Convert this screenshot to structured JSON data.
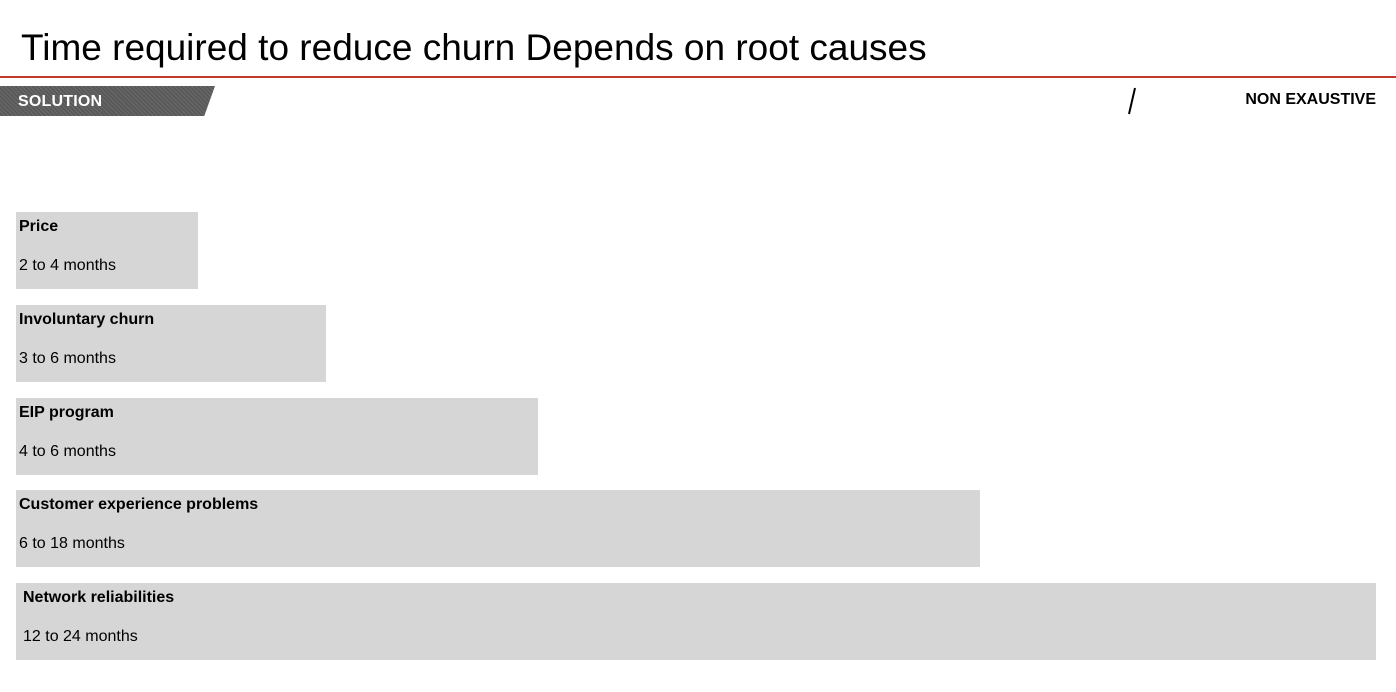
{
  "title": "Time required to reduce churn Depends on root causes",
  "tag": {
    "label": "SOLUTION"
  },
  "badge": {
    "label": "NON EXAUSTIVE"
  },
  "colors": {
    "rule": "#c0392b",
    "tag_bg": "#595959",
    "bar_bg": "#d6d6d6",
    "text": "#000000"
  },
  "chart_data": {
    "type": "bar",
    "orientation": "horizontal",
    "unit": "months",
    "categories": [
      "Price",
      "Involuntary churn",
      "EIP program",
      "Customer experience problems",
      "Network reliabilities"
    ],
    "ranges": [
      [
        2,
        4
      ],
      [
        3,
        6
      ],
      [
        4,
        6
      ],
      [
        6,
        18
      ],
      [
        12,
        24
      ]
    ],
    "labels": [
      "2 to 4 months",
      "3 to 6 months",
      "4 to 6 months",
      "6 to 18 months",
      "12 to 24 months"
    ],
    "relative_length": [
      0.134,
      0.228,
      0.384,
      0.709,
      1.0
    ]
  }
}
